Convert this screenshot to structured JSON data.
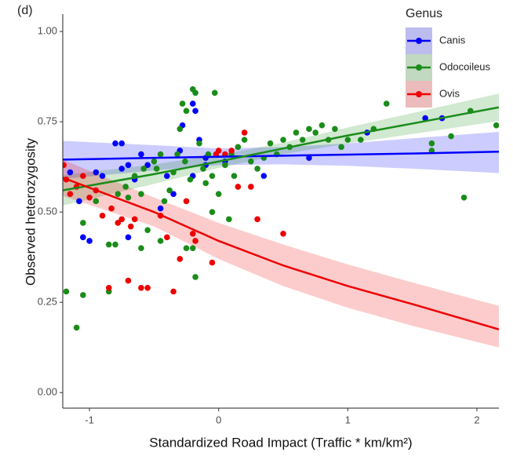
{
  "chart_data": {
    "type": "scatter",
    "panel_label": "(d)",
    "x_label": "Standardized Road Impact (Traffic * km/km²)",
    "y_label": "Observed heterozygosity",
    "legend_title": "Genus",
    "legend_position": "top-right",
    "xlim": [
      -1.207,
      2.17
    ],
    "ylim": [
      -0.043,
      1.048
    ],
    "xticks": [
      -1,
      0,
      1,
      2
    ],
    "yticks": [
      {
        "value": 0,
        "label": "0.00"
      },
      0.25,
      {
        "value": 0.5,
        "label": "0.50"
      },
      0.75,
      {
        "value": 1,
        "label": "1.00"
      }
    ],
    "series": [
      {
        "name": "Canis",
        "color": "#0000ff",
        "x": [
          -1.15,
          -1.08,
          -1.05,
          -1,
          -0.95,
          -0.9,
          -0.8,
          -0.75,
          -0.75,
          -0.7,
          -0.65,
          -0.6,
          -0.55,
          -0.7,
          -0.45,
          -0.4,
          -0.35,
          -0.3,
          -0.28,
          -0.2,
          -0.18,
          -0.2,
          -0.15,
          -0.1,
          -0.1,
          0.05,
          0.35,
          0.7,
          1.15,
          1.6,
          1.73
        ],
        "values": [
          0.61,
          0.53,
          0.43,
          0.42,
          0.61,
          0.6,
          0.69,
          0.69,
          0.62,
          0.63,
          0.59,
          0.66,
          0.63,
          0.43,
          0.51,
          0.6,
          0.55,
          0.67,
          0.74,
          0.8,
          0.78,
          0.6,
          0.7,
          0.63,
          0.65,
          0.64,
          0.6,
          0.65,
          0.72,
          0.76,
          0.76
        ],
        "fit": {
          "x": [
            -1.207,
            -0.5,
            0,
            0.5,
            1,
            1.5,
            2.17
          ],
          "y": [
            0.645,
            0.65,
            0.653,
            0.656,
            0.659,
            0.662,
            0.667
          ],
          "lower": [
            0.592,
            0.615,
            0.63,
            0.632,
            0.628,
            0.62,
            0.608
          ],
          "upper": [
            0.697,
            0.685,
            0.676,
            0.68,
            0.69,
            0.704,
            0.722
          ]
        }
      },
      {
        "name": "Odocoileus",
        "color": "#1a8c1a",
        "x": [
          -1.18,
          -1.1,
          -1.05,
          -1.05,
          -0.95,
          -0.85,
          -0.8,
          -0.85,
          -0.78,
          -0.72,
          -0.65,
          -0.6,
          -0.58,
          -0.55,
          -0.5,
          -0.48,
          -0.45,
          -0.42,
          -0.38,
          -0.35,
          -0.32,
          -0.3,
          -0.28,
          -0.26,
          -0.25,
          -0.22,
          -0.2,
          -0.18,
          -0.2,
          -0.25,
          -0.18,
          -0.15,
          -0.12,
          -0.1,
          -0.08,
          -0.05,
          -0.03,
          0,
          0.05,
          0.1,
          0.12,
          0.15,
          0.2,
          0.25,
          0.3,
          0.35,
          0.4,
          0.45,
          0.5,
          0.55,
          0.6,
          0.65,
          0.7,
          0.75,
          0.8,
          0.85,
          0.9,
          0.95,
          1,
          1.1,
          1.2,
          1.3,
          1.5,
          1.65,
          1.65,
          1.8,
          1.9,
          1.95,
          2.15,
          -0.6,
          -0.45,
          0.08,
          -0.05,
          -0.7
        ],
        "values": [
          0.28,
          0.18,
          0.27,
          0.47,
          0.53,
          0.41,
          0.41,
          0.28,
          0.55,
          0.57,
          0.6,
          0.55,
          0.62,
          0.45,
          0.64,
          0.62,
          0.66,
          0.53,
          0.56,
          0.61,
          0.66,
          0.73,
          0.8,
          0.64,
          0.78,
          0.59,
          0.84,
          0.83,
          0.4,
          0.4,
          0.32,
          0.69,
          0.62,
          0.58,
          0.66,
          0.6,
          0.83,
          0.55,
          0.63,
          0.66,
          0.6,
          0.68,
          0.7,
          0.64,
          0.62,
          0.65,
          0.69,
          0.66,
          0.7,
          0.68,
          0.72,
          0.7,
          0.73,
          0.72,
          0.74,
          0.7,
          0.73,
          0.68,
          0.7,
          0.7,
          0.73,
          0.8,
          0.8,
          0.69,
          0.67,
          0.71,
          0.54,
          0.78,
          0.74,
          0.4,
          0.42,
          0.48,
          0.5,
          0.54
        ],
        "fit": {
          "x": [
            -1.207,
            -0.5,
            0,
            0.5,
            1,
            1.5,
            2.17
          ],
          "y": [
            0.56,
            0.605,
            0.64,
            0.676,
            0.712,
            0.745,
            0.79
          ],
          "lower": [
            0.518,
            0.578,
            0.622,
            0.66,
            0.69,
            0.716,
            0.752
          ],
          "upper": [
            0.602,
            0.632,
            0.658,
            0.692,
            0.734,
            0.774,
            0.828
          ]
        }
      },
      {
        "name": "Ovis",
        "color": "#ee0000",
        "x": [
          -1.2,
          -1.18,
          -1.15,
          -1.1,
          -1.05,
          -1,
          -0.95,
          -0.9,
          -0.85,
          -0.83,
          -0.78,
          -0.75,
          -0.7,
          -0.68,
          -0.65,
          -0.6,
          -0.55,
          -0.45,
          -0.4,
          -0.35,
          -0.3,
          -0.25,
          -0.2,
          -0.18,
          -0.05,
          -0.02,
          0,
          0.05,
          0.1,
          0.2,
          0.15,
          0.25,
          0.3,
          0.5
        ],
        "values": [
          0.63,
          0.59,
          0.55,
          0.57,
          0.6,
          0.54,
          0.56,
          0.49,
          0.29,
          0.51,
          0.47,
          0.48,
          0.31,
          0.46,
          0.48,
          0.29,
          0.29,
          0.49,
          0.43,
          0.28,
          0.37,
          0.53,
          0.44,
          0.42,
          0.36,
          0.66,
          0.67,
          0.66,
          0.67,
          0.72,
          0.57,
          0.57,
          0.48,
          0.44
        ],
        "fit": {
          "x": [
            -1.207,
            -0.5,
            0,
            0.5,
            1,
            1.5,
            2.17
          ],
          "y": [
            0.595,
            0.5,
            0.42,
            0.352,
            0.295,
            0.245,
            0.175
          ],
          "lower": [
            0.545,
            0.46,
            0.37,
            0.295,
            0.235,
            0.185,
            0.125
          ],
          "upper": [
            0.645,
            0.54,
            0.47,
            0.41,
            0.355,
            0.305,
            0.24
          ]
        }
      }
    ]
  }
}
